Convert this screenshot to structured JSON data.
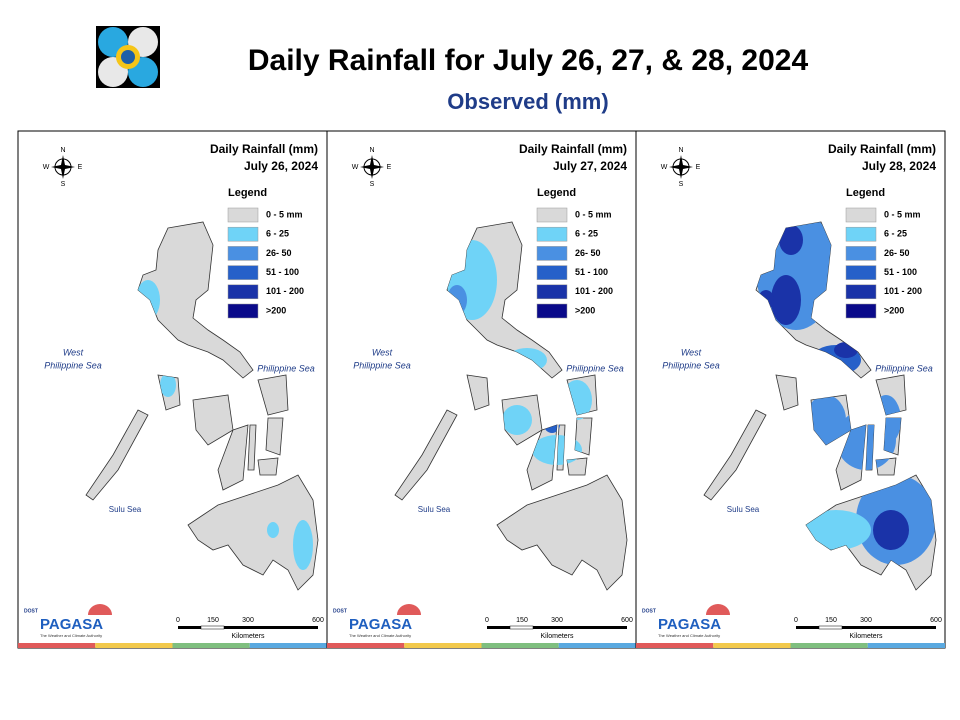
{
  "header": {
    "title": "Daily Rainfall for July 26, 27, & 28, 2024",
    "subtitle": "Observed (mm)"
  },
  "panels": [
    {
      "title": "Daily Rainfall (mm)",
      "date": "July 26, 2024"
    },
    {
      "title": "Daily Rainfall (mm)",
      "date": "July 27, 2024"
    },
    {
      "title": "Daily Rainfall (mm)",
      "date": "July 28, 2024"
    }
  ],
  "legend": {
    "title": "Legend",
    "items": [
      "0 - 5 mm",
      "6 - 25",
      "26- 50",
      "51 - 100",
      "101 - 200",
      ">200"
    ]
  },
  "compass": [
    "N",
    "W",
    "E",
    "S"
  ],
  "seas": {
    "west": [
      "West",
      "Philippine Sea"
    ],
    "east": "Philippine Sea",
    "south": "Sulu Sea"
  },
  "scale": {
    "ticks": [
      "0",
      "150",
      "300",
      "600"
    ],
    "unit": "Kilometers"
  },
  "logo": {
    "agency": "DOST",
    "name": "PAGASA",
    "tagline": "The Weather and Climate Authority"
  }
}
